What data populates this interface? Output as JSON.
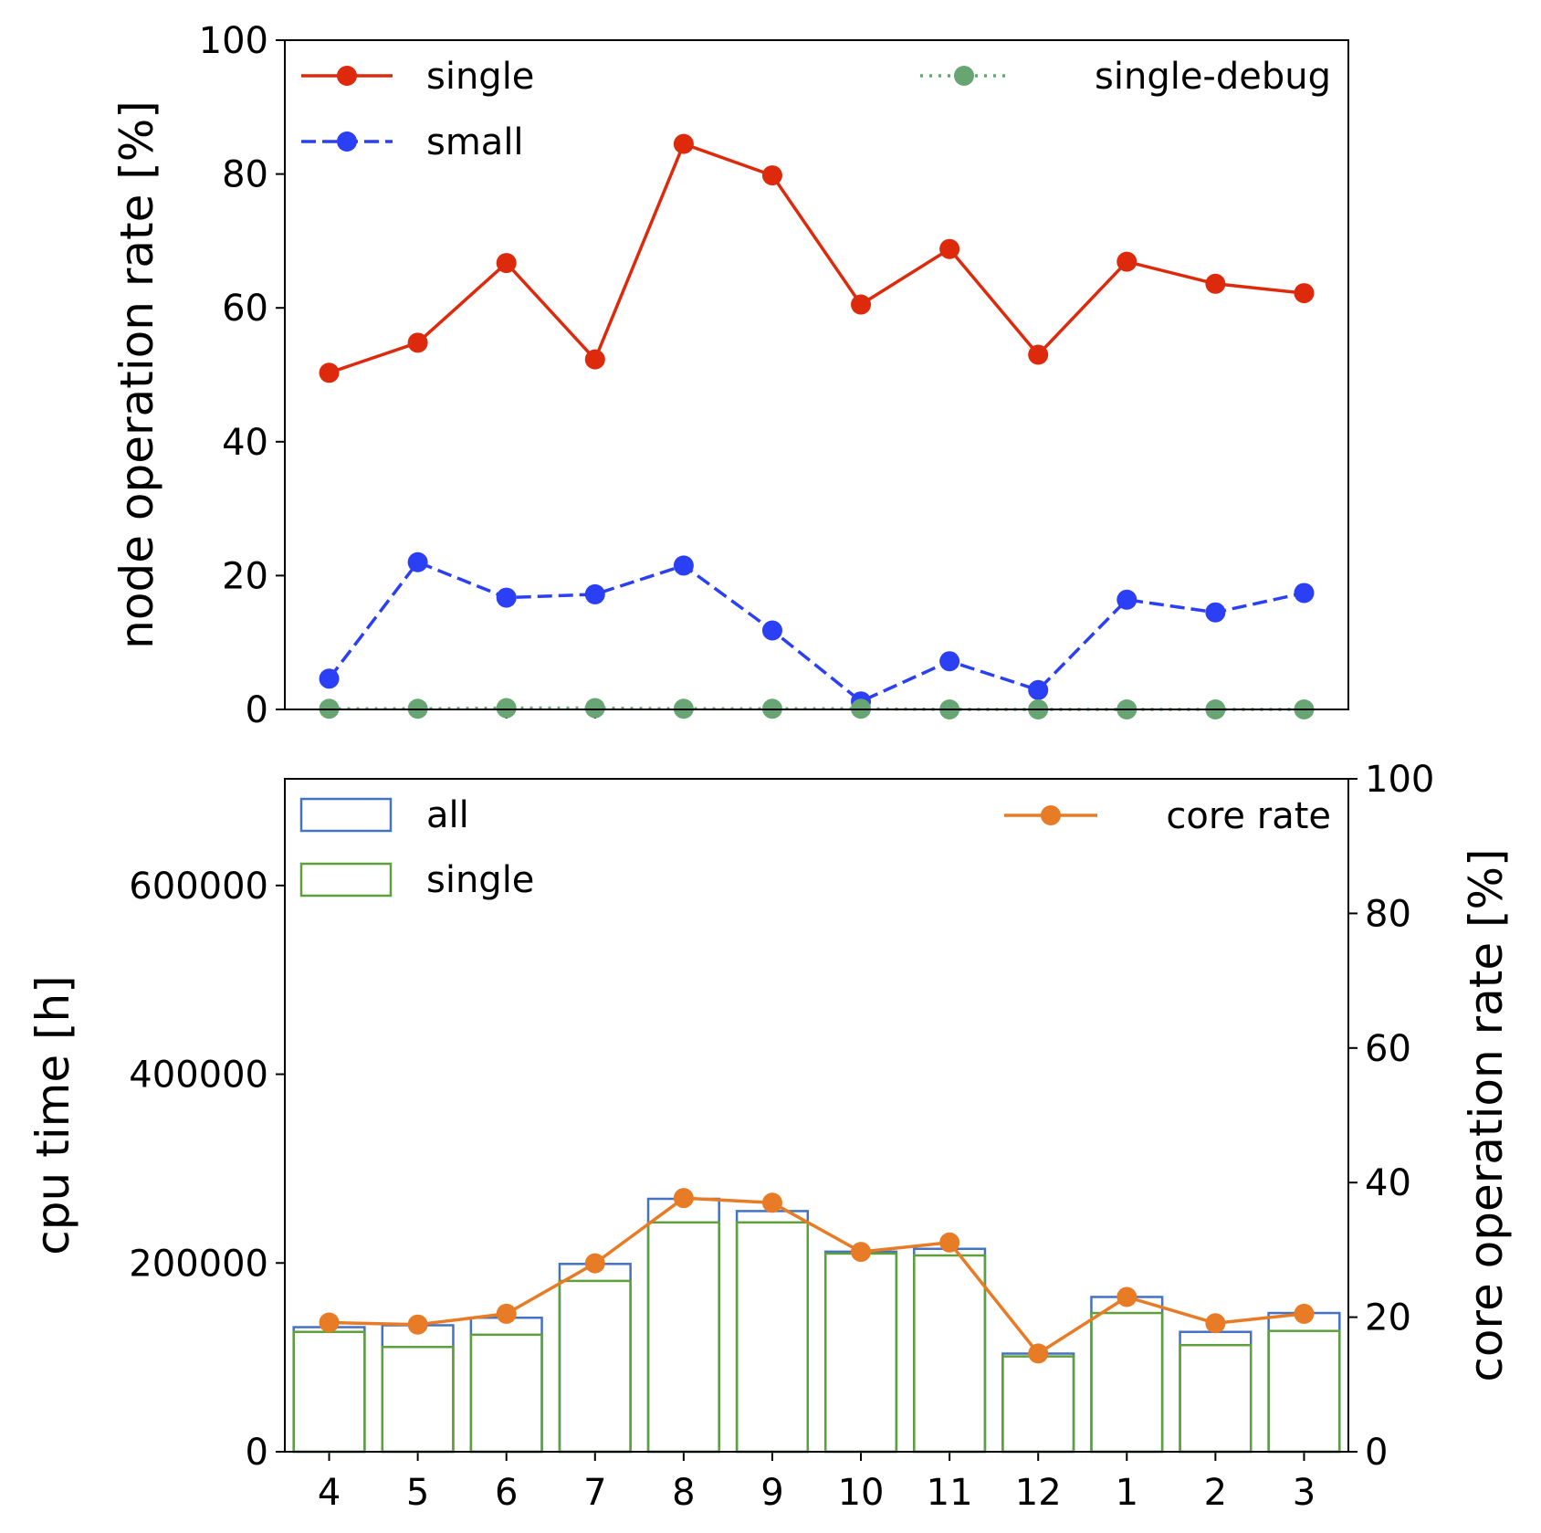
{
  "chart_data": [
    {
      "type": "line",
      "title": "",
      "xlabel": "",
      "ylabel": "node operation rate [%]",
      "ylim": [
        0,
        100
      ],
      "yticks": [
        0,
        20,
        40,
        60,
        80,
        100
      ],
      "categories": [
        "4",
        "5",
        "6",
        "7",
        "8",
        "9",
        "10",
        "11",
        "12",
        "1",
        "2",
        "3"
      ],
      "show_x_tick_labels": false,
      "grid": false,
      "legend": "top",
      "series": [
        {
          "name": "single",
          "color": "#dd2a0c",
          "style": "solid",
          "marker": "circle",
          "values": [
            50.3,
            54.8,
            66.7,
            52.3,
            84.5,
            79.8,
            60.5,
            68.8,
            53.0,
            66.9,
            63.6,
            62.2
          ]
        },
        {
          "name": "small",
          "color": "#2b3ff5",
          "style": "dashed",
          "marker": "circle",
          "values": [
            4.6,
            22.0,
            16.7,
            17.2,
            21.5,
            11.8,
            1.2,
            7.2,
            2.9,
            16.4,
            14.5,
            17.4
          ]
        },
        {
          "name": "single-debug",
          "color": "#67a573",
          "style": "dotted",
          "marker": "circle",
          "values": [
            0.1,
            0.1,
            0.2,
            0.2,
            0.1,
            0.1,
            0.1,
            0.0,
            0.0,
            0.0,
            0.0,
            0.0
          ]
        }
      ]
    },
    {
      "type": "bar",
      "title": "",
      "xlabel": "",
      "ylabel": "cpu time [h]",
      "y2label": "core operation rate [%]",
      "ylim": [
        0,
        713000
      ],
      "yticks": [
        0,
        200000,
        400000,
        600000
      ],
      "y2lim": [
        0,
        100
      ],
      "y2ticks": [
        0,
        20,
        40,
        60,
        80,
        100
      ],
      "categories": [
        "4",
        "5",
        "6",
        "7",
        "8",
        "9",
        "10",
        "11",
        "12",
        "1",
        "2",
        "3"
      ],
      "grid": false,
      "legend": "top",
      "series": [
        {
          "name": "all",
          "kind": "bar-outline",
          "color": "#4472c4",
          "axis": "left",
          "values": [
            132000,
            134000,
            142000,
            199000,
            268000,
            255000,
            212000,
            215000,
            104000,
            164000,
            127000,
            147000
          ]
        },
        {
          "name": "single",
          "kind": "bar-outline",
          "color": "#5fa03c",
          "axis": "left",
          "values": [
            127000,
            111000,
            124000,
            181000,
            243000,
            243000,
            210000,
            208000,
            101000,
            147000,
            113000,
            128000
          ]
        },
        {
          "name": "core rate",
          "kind": "line",
          "color": "#e87b26",
          "marker": "circle",
          "axis": "right",
          "values": [
            19.2,
            18.9,
            20.5,
            28.0,
            37.7,
            37.0,
            29.7,
            31.1,
            14.6,
            23.0,
            19.1,
            20.5
          ]
        }
      ]
    }
  ]
}
